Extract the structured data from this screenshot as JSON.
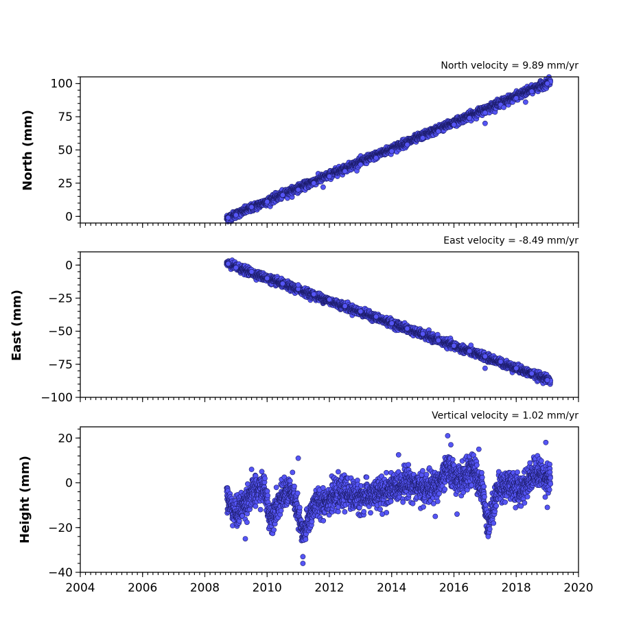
{
  "chart_data": [
    {
      "type": "scatter",
      "annotation": "North velocity = 9.89 mm/yr",
      "ylabel": "North (mm)",
      "xlim": [
        2004,
        2020
      ],
      "ylim": [
        -5,
        105
      ],
      "yticks": [
        0,
        25,
        50,
        75,
        100
      ],
      "ytick_labels": [
        "0",
        "25",
        "50",
        "75",
        "100"
      ],
      "xticks_labeled": false,
      "color": "#5555f5",
      "edge_color": "#1c1c6a",
      "time_span": [
        2008.7,
        2019.1
      ],
      "velocity": 9.89,
      "intercept": -1.5,
      "scatter": 1.4,
      "points": [
        [
          2008.75,
          -1
        ],
        [
          2009.0,
          1
        ],
        [
          2009.5,
          7
        ],
        [
          2010.0,
          11
        ],
        [
          2010.5,
          16
        ],
        [
          2011.0,
          20
        ],
        [
          2011.5,
          25
        ],
        [
          2012.0,
          30
        ],
        [
          2012.5,
          34
        ],
        [
          2013.0,
          39
        ],
        [
          2013.5,
          44
        ],
        [
          2014.0,
          49
        ],
        [
          2014.5,
          54
        ],
        [
          2015.0,
          59
        ],
        [
          2015.5,
          64
        ],
        [
          2016.0,
          69
        ],
        [
          2016.5,
          74
        ],
        [
          2017.0,
          78
        ],
        [
          2017.5,
          84
        ],
        [
          2018.0,
          89
        ],
        [
          2018.5,
          94
        ],
        [
          2019.0,
          100
        ],
        [
          2011.8,
          22
        ],
        [
          2017.0,
          70
        ],
        [
          2017.6,
          82
        ],
        [
          2018.3,
          86
        ]
      ]
    },
    {
      "type": "scatter",
      "annotation": "East velocity = -8.49 mm/yr",
      "ylabel": "East (mm)",
      "xlim": [
        2004,
        2020
      ],
      "ylim": [
        -100,
        10
      ],
      "yticks": [
        0,
        -25,
        -50,
        -75,
        -100
      ],
      "ytick_labels": [
        "0",
        "−25",
        "−50",
        "−75",
        "−100"
      ],
      "xticks_labeled": false,
      "color": "#5555f5",
      "edge_color": "#1c1c6a",
      "time_span": [
        2008.7,
        2019.1
      ],
      "velocity": -8.49,
      "intercept": 1.0,
      "scatter": 1.4,
      "points": [
        [
          2008.75,
          1
        ],
        [
          2009.0,
          -2
        ],
        [
          2009.5,
          -5
        ],
        [
          2010.0,
          -10
        ],
        [
          2010.5,
          -14
        ],
        [
          2011.0,
          -18
        ],
        [
          2011.5,
          -22
        ],
        [
          2012.0,
          -26
        ],
        [
          2012.5,
          -31
        ],
        [
          2013.0,
          -35
        ],
        [
          2013.5,
          -39
        ],
        [
          2014.0,
          -44
        ],
        [
          2014.5,
          -48
        ],
        [
          2015.0,
          -52
        ],
        [
          2015.5,
          -57
        ],
        [
          2016.0,
          -61
        ],
        [
          2016.5,
          -65
        ],
        [
          2017.0,
          -69
        ],
        [
          2017.5,
          -73
        ],
        [
          2018.0,
          -78
        ],
        [
          2018.5,
          -82
        ],
        [
          2019.0,
          -87
        ],
        [
          2017.0,
          -78
        ],
        [
          2011.0,
          -15
        ]
      ]
    },
    {
      "type": "scatter",
      "annotation": "Vertical velocity = 1.02 mm/yr",
      "ylabel": "Height (mm)",
      "xlim": [
        2004,
        2020
      ],
      "ylim": [
        -40,
        25
      ],
      "yticks": [
        20,
        0,
        -20,
        -40
      ],
      "ytick_labels": [
        "20",
        "0",
        "−20",
        "−40"
      ],
      "xticks": [
        2004,
        2006,
        2008,
        2010,
        2012,
        2014,
        2016,
        2018,
        2020
      ],
      "xtick_labels": [
        "2004",
        "2006",
        "2008",
        "2010",
        "2012",
        "2014",
        "2016",
        "2018",
        "2020"
      ],
      "xticks_labeled": true,
      "color": "#5555f5",
      "edge_color": "#1c1c6a",
      "time_span": [
        2008.7,
        2019.1
      ],
      "scatter": 3.2,
      "trend_knots": [
        [
          2008.7,
          -7
        ],
        [
          2009.0,
          -14
        ],
        [
          2009.5,
          -5
        ],
        [
          2009.9,
          -2
        ],
        [
          2010.1,
          -16
        ],
        [
          2010.4,
          -8
        ],
        [
          2010.7,
          -3
        ],
        [
          2010.9,
          -8
        ],
        [
          2011.15,
          -24
        ],
        [
          2011.5,
          -10
        ],
        [
          2012.0,
          -7
        ],
        [
          2012.5,
          -4
        ],
        [
          2013.0,
          -7
        ],
        [
          2013.5,
          -5
        ],
        [
          2014.0,
          -3
        ],
        [
          2014.5,
          1
        ],
        [
          2015.0,
          -3
        ],
        [
          2015.5,
          -1
        ],
        [
          2015.8,
          6
        ],
        [
          2016.2,
          1
        ],
        [
          2016.6,
          6
        ],
        [
          2016.9,
          -2
        ],
        [
          2017.1,
          -19
        ],
        [
          2017.4,
          -3
        ],
        [
          2017.8,
          0
        ],
        [
          2018.1,
          -4
        ],
        [
          2018.6,
          5
        ],
        [
          2019.1,
          2
        ]
      ],
      "points": [
        [
          2011.15,
          -36
        ],
        [
          2011.15,
          -33
        ],
        [
          2015.8,
          21
        ],
        [
          2015.9,
          17
        ],
        [
          2016.8,
          15
        ],
        [
          2011.0,
          11
        ],
        [
          2009.5,
          6
        ],
        [
          2015.4,
          -15
        ],
        [
          2016.1,
          -14
        ],
        [
          2018.95,
          18
        ],
        [
          2019.0,
          -11
        ],
        [
          2017.1,
          -24
        ],
        [
          2009.3,
          -25
        ],
        [
          2013.7,
          -14
        ]
      ]
    }
  ]
}
